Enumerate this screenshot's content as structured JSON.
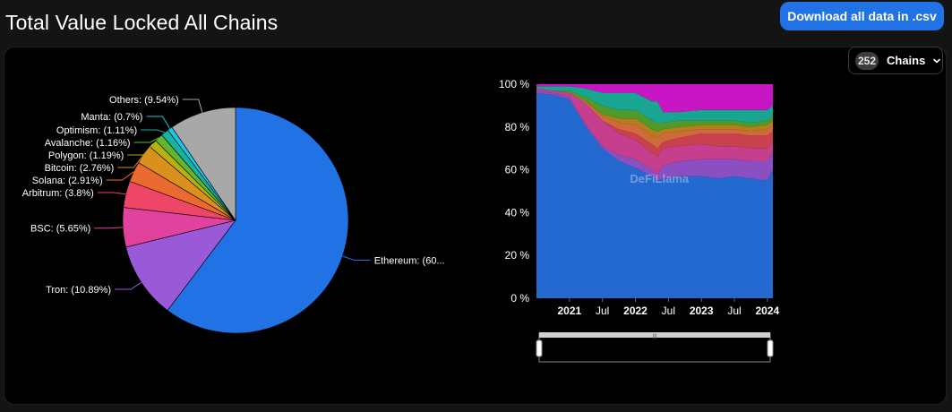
{
  "header": {
    "title": "Total Value Locked All Chains",
    "download_label": "Download all data in .csv"
  },
  "chains_filter": {
    "count": "252",
    "label": "Chains",
    "icon": "chevron-down-icon"
  },
  "chart_data": [
    {
      "type": "pie",
      "slices": [
        {
          "label": "Ethereum: (60...",
          "name": "Ethereum",
          "value": 60.29,
          "color": "#2172e5"
        },
        {
          "label": "Tron: (10.89%)",
          "name": "Tron",
          "value": 10.89,
          "color": "#9a5ad8"
        },
        {
          "label": "BSC: (5.65%)",
          "name": "BSC",
          "value": 5.65,
          "color": "#e0429e"
        },
        {
          "label": "Arbitrum: (3.8%)",
          "name": "Arbitrum",
          "value": 3.8,
          "color": "#ef4566"
        },
        {
          "label": "Solana: (2.91%)",
          "name": "Solana",
          "value": 2.91,
          "color": "#ea6a30"
        },
        {
          "label": "Bitcoin: (2.76%)",
          "name": "Bitcoin",
          "value": 2.76,
          "color": "#d9901d"
        },
        {
          "label": "Polygon: (1.19%)",
          "name": "Polygon",
          "value": 1.19,
          "color": "#b5b10f"
        },
        {
          "label": "Avalanche: (1.16%)",
          "name": "Avalanche",
          "value": 1.16,
          "color": "#61b52f"
        },
        {
          "label": "Optimism: (1.11%)",
          "name": "Optimism",
          "value": 1.11,
          "color": "#16b3a2"
        },
        {
          "label": "Manta: (0.7%)",
          "name": "Manta",
          "value": 0.7,
          "color": "#1ec5e6"
        },
        {
          "label": "Others: (9.54%)",
          "name": "Others",
          "value": 9.54,
          "color": "#a8a8a8"
        }
      ]
    },
    {
      "type": "area",
      "stacked": true,
      "normalized": true,
      "yticks": [
        "0 %",
        "20 %",
        "40 %",
        "60 %",
        "80 %",
        "100 %"
      ],
      "ylim": [
        0,
        100
      ],
      "xticks": [
        "2021",
        "Jul",
        "2022",
        "Jul",
        "2023",
        "Jul",
        "2024"
      ],
      "watermark": "DeFiLlama",
      "x": [
        "2020-07",
        "2020-10",
        "2021-01",
        "2021-04",
        "2021-07",
        "2021-10",
        "2022-01",
        "2022-04",
        "2022-05",
        "2022-06",
        "2022-09",
        "2023-01",
        "2023-04",
        "2023-07",
        "2023-10",
        "2024-01",
        "2024-02"
      ],
      "series": [
        {
          "color": "#2369d0",
          "values": [
            96,
            95,
            93,
            80,
            70,
            64,
            61,
            57,
            55,
            56,
            57,
            57,
            56,
            57,
            56,
            55,
            60
          ]
        },
        {
          "color": "#8b4fc2",
          "values": [
            1,
            1,
            1,
            1,
            1,
            3,
            4,
            3,
            3,
            6,
            7,
            8,
            9,
            8,
            8,
            9,
            8
          ]
        },
        {
          "color": "#c63f8f",
          "values": [
            1,
            1,
            2,
            10,
            12,
            10,
            9,
            8,
            8,
            8,
            7,
            7,
            6,
            6,
            6,
            6,
            5
          ]
        },
        {
          "color": "#c9414f",
          "values": [
            0,
            0,
            0,
            0,
            0,
            2,
            3,
            4,
            4,
            3,
            4,
            5,
            6,
            6,
            6,
            6,
            5
          ]
        },
        {
          "color": "#d06a3a",
          "values": [
            0,
            0,
            0,
            1,
            2,
            3,
            4,
            4,
            5,
            4,
            3,
            2,
            2,
            2,
            2,
            3,
            3
          ]
        },
        {
          "color": "#b37f1c",
          "values": [
            0,
            0,
            0,
            0,
            1,
            2,
            3,
            3,
            3,
            2,
            2,
            2,
            2,
            2,
            2,
            2,
            2
          ]
        },
        {
          "color": "#4e9b2c",
          "values": [
            0,
            0,
            1,
            2,
            4,
            4,
            4,
            4,
            4,
            3,
            3,
            2,
            2,
            2,
            2,
            2,
            2
          ]
        },
        {
          "color": "#18a693",
          "values": [
            1,
            2,
            2,
            4,
            6,
            8,
            8,
            9,
            10,
            5,
            4,
            5,
            5,
            5,
            6,
            5,
            5
          ]
        },
        {
          "color": "#c816c4",
          "values": [
            1,
            1,
            1,
            2,
            4,
            4,
            4,
            8,
            8,
            13,
            13,
            12,
            12,
            12,
            12,
            12,
            10
          ]
        }
      ]
    }
  ]
}
